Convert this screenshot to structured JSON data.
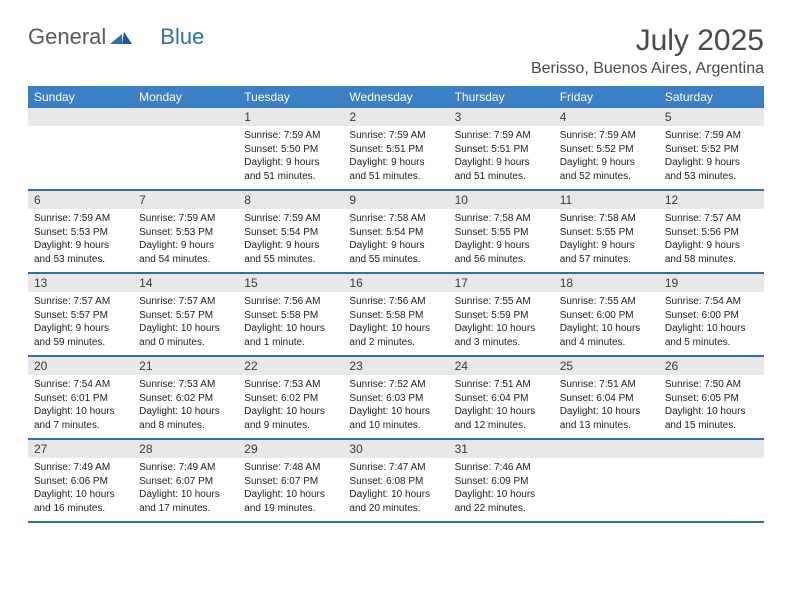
{
  "logo": {
    "part1": "General",
    "part2": "Blue"
  },
  "title": "July 2025",
  "location": "Berisso, Buenos Aires, Argentina",
  "day_headers": [
    "Sunday",
    "Monday",
    "Tuesday",
    "Wednesday",
    "Thursday",
    "Friday",
    "Saturday"
  ],
  "colors": {
    "header_bg": "#3b7fc4",
    "rule": "#2f6fae",
    "daynum_bg": "#e8e8e8",
    "text": "#222222"
  },
  "weeks": [
    {
      "numbers": [
        "",
        "",
        "1",
        "2",
        "3",
        "4",
        "5"
      ],
      "cells": [
        null,
        null,
        {
          "sunrise": "Sunrise: 7:59 AM",
          "sunset": "Sunset: 5:50 PM",
          "daylight1": "Daylight: 9 hours",
          "daylight2": "and 51 minutes."
        },
        {
          "sunrise": "Sunrise: 7:59 AM",
          "sunset": "Sunset: 5:51 PM",
          "daylight1": "Daylight: 9 hours",
          "daylight2": "and 51 minutes."
        },
        {
          "sunrise": "Sunrise: 7:59 AM",
          "sunset": "Sunset: 5:51 PM",
          "daylight1": "Daylight: 9 hours",
          "daylight2": "and 51 minutes."
        },
        {
          "sunrise": "Sunrise: 7:59 AM",
          "sunset": "Sunset: 5:52 PM",
          "daylight1": "Daylight: 9 hours",
          "daylight2": "and 52 minutes."
        },
        {
          "sunrise": "Sunrise: 7:59 AM",
          "sunset": "Sunset: 5:52 PM",
          "daylight1": "Daylight: 9 hours",
          "daylight2": "and 53 minutes."
        }
      ]
    },
    {
      "numbers": [
        "6",
        "7",
        "8",
        "9",
        "10",
        "11",
        "12"
      ],
      "cells": [
        {
          "sunrise": "Sunrise: 7:59 AM",
          "sunset": "Sunset: 5:53 PM",
          "daylight1": "Daylight: 9 hours",
          "daylight2": "and 53 minutes."
        },
        {
          "sunrise": "Sunrise: 7:59 AM",
          "sunset": "Sunset: 5:53 PM",
          "daylight1": "Daylight: 9 hours",
          "daylight2": "and 54 minutes."
        },
        {
          "sunrise": "Sunrise: 7:59 AM",
          "sunset": "Sunset: 5:54 PM",
          "daylight1": "Daylight: 9 hours",
          "daylight2": "and 55 minutes."
        },
        {
          "sunrise": "Sunrise: 7:58 AM",
          "sunset": "Sunset: 5:54 PM",
          "daylight1": "Daylight: 9 hours",
          "daylight2": "and 55 minutes."
        },
        {
          "sunrise": "Sunrise: 7:58 AM",
          "sunset": "Sunset: 5:55 PM",
          "daylight1": "Daylight: 9 hours",
          "daylight2": "and 56 minutes."
        },
        {
          "sunrise": "Sunrise: 7:58 AM",
          "sunset": "Sunset: 5:55 PM",
          "daylight1": "Daylight: 9 hours",
          "daylight2": "and 57 minutes."
        },
        {
          "sunrise": "Sunrise: 7:57 AM",
          "sunset": "Sunset: 5:56 PM",
          "daylight1": "Daylight: 9 hours",
          "daylight2": "and 58 minutes."
        }
      ]
    },
    {
      "numbers": [
        "13",
        "14",
        "15",
        "16",
        "17",
        "18",
        "19"
      ],
      "cells": [
        {
          "sunrise": "Sunrise: 7:57 AM",
          "sunset": "Sunset: 5:57 PM",
          "daylight1": "Daylight: 9 hours",
          "daylight2": "and 59 minutes."
        },
        {
          "sunrise": "Sunrise: 7:57 AM",
          "sunset": "Sunset: 5:57 PM",
          "daylight1": "Daylight: 10 hours",
          "daylight2": "and 0 minutes."
        },
        {
          "sunrise": "Sunrise: 7:56 AM",
          "sunset": "Sunset: 5:58 PM",
          "daylight1": "Daylight: 10 hours",
          "daylight2": "and 1 minute."
        },
        {
          "sunrise": "Sunrise: 7:56 AM",
          "sunset": "Sunset: 5:58 PM",
          "daylight1": "Daylight: 10 hours",
          "daylight2": "and 2 minutes."
        },
        {
          "sunrise": "Sunrise: 7:55 AM",
          "sunset": "Sunset: 5:59 PM",
          "daylight1": "Daylight: 10 hours",
          "daylight2": "and 3 minutes."
        },
        {
          "sunrise": "Sunrise: 7:55 AM",
          "sunset": "Sunset: 6:00 PM",
          "daylight1": "Daylight: 10 hours",
          "daylight2": "and 4 minutes."
        },
        {
          "sunrise": "Sunrise: 7:54 AM",
          "sunset": "Sunset: 6:00 PM",
          "daylight1": "Daylight: 10 hours",
          "daylight2": "and 5 minutes."
        }
      ]
    },
    {
      "numbers": [
        "20",
        "21",
        "22",
        "23",
        "24",
        "25",
        "26"
      ],
      "cells": [
        {
          "sunrise": "Sunrise: 7:54 AM",
          "sunset": "Sunset: 6:01 PM",
          "daylight1": "Daylight: 10 hours",
          "daylight2": "and 7 minutes."
        },
        {
          "sunrise": "Sunrise: 7:53 AM",
          "sunset": "Sunset: 6:02 PM",
          "daylight1": "Daylight: 10 hours",
          "daylight2": "and 8 minutes."
        },
        {
          "sunrise": "Sunrise: 7:53 AM",
          "sunset": "Sunset: 6:02 PM",
          "daylight1": "Daylight: 10 hours",
          "daylight2": "and 9 minutes."
        },
        {
          "sunrise": "Sunrise: 7:52 AM",
          "sunset": "Sunset: 6:03 PM",
          "daylight1": "Daylight: 10 hours",
          "daylight2": "and 10 minutes."
        },
        {
          "sunrise": "Sunrise: 7:51 AM",
          "sunset": "Sunset: 6:04 PM",
          "daylight1": "Daylight: 10 hours",
          "daylight2": "and 12 minutes."
        },
        {
          "sunrise": "Sunrise: 7:51 AM",
          "sunset": "Sunset: 6:04 PM",
          "daylight1": "Daylight: 10 hours",
          "daylight2": "and 13 minutes."
        },
        {
          "sunrise": "Sunrise: 7:50 AM",
          "sunset": "Sunset: 6:05 PM",
          "daylight1": "Daylight: 10 hours",
          "daylight2": "and 15 minutes."
        }
      ]
    },
    {
      "numbers": [
        "27",
        "28",
        "29",
        "30",
        "31",
        "",
        ""
      ],
      "cells": [
        {
          "sunrise": "Sunrise: 7:49 AM",
          "sunset": "Sunset: 6:06 PM",
          "daylight1": "Daylight: 10 hours",
          "daylight2": "and 16 minutes."
        },
        {
          "sunrise": "Sunrise: 7:49 AM",
          "sunset": "Sunset: 6:07 PM",
          "daylight1": "Daylight: 10 hours",
          "daylight2": "and 17 minutes."
        },
        {
          "sunrise": "Sunrise: 7:48 AM",
          "sunset": "Sunset: 6:07 PM",
          "daylight1": "Daylight: 10 hours",
          "daylight2": "and 19 minutes."
        },
        {
          "sunrise": "Sunrise: 7:47 AM",
          "sunset": "Sunset: 6:08 PM",
          "daylight1": "Daylight: 10 hours",
          "daylight2": "and 20 minutes."
        },
        {
          "sunrise": "Sunrise: 7:46 AM",
          "sunset": "Sunset: 6:09 PM",
          "daylight1": "Daylight: 10 hours",
          "daylight2": "and 22 minutes."
        },
        null,
        null
      ]
    }
  ]
}
